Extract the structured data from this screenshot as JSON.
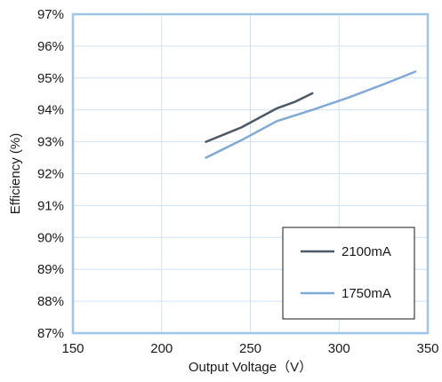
{
  "chart_data": {
    "type": "line",
    "xlabel": "Output Voltage（V）",
    "ylabel": "Efficiency (%)",
    "xlim": [
      150,
      350
    ],
    "ylim": [
      87,
      97
    ],
    "x_ticks": [
      150,
      200,
      250,
      300,
      350
    ],
    "y_ticks": [
      87,
      88,
      89,
      90,
      91,
      92,
      93,
      94,
      95,
      96,
      97
    ],
    "y_tick_suffix": "%",
    "grid": true,
    "legend_position": "bottom-right",
    "series": [
      {
        "name": "2100mA",
        "color": "#4d5866",
        "x": [
          225,
          245,
          265,
          275,
          285
        ],
        "y": [
          93.0,
          93.45,
          94.05,
          94.25,
          94.52
        ]
      },
      {
        "name": "1750mA",
        "color": "#7fa9d6",
        "x": [
          225,
          245,
          265,
          285,
          305,
          325,
          343
        ],
        "y": [
          92.5,
          93.05,
          93.65,
          94.0,
          94.38,
          94.8,
          95.2
        ]
      }
    ]
  }
}
